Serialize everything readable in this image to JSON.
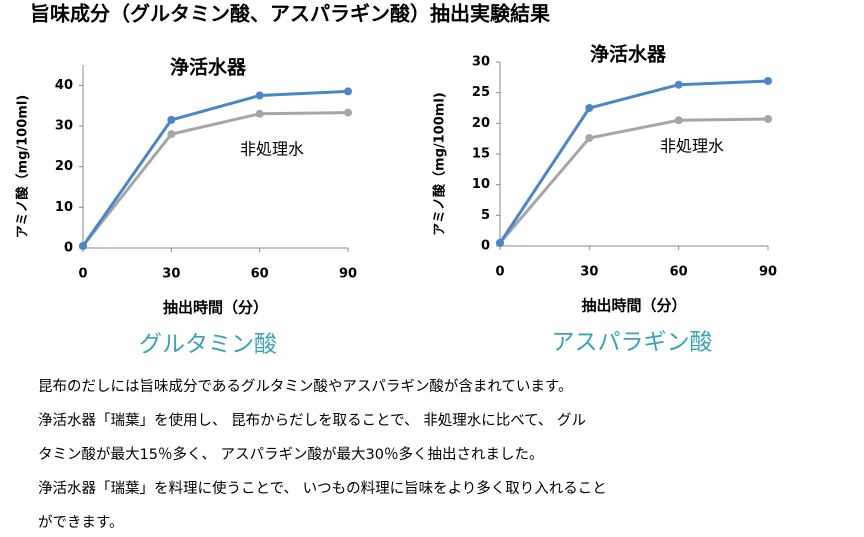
{
  "title": "旨味成分（グルタミン酸、アスパラギン酸）抽出実験結果",
  "chart_data": [
    {
      "type": "line",
      "subtitle": "グルタミン酸",
      "x_label": "抽出時間（分）",
      "y_label": "アミノ酸（mg/100ml)",
      "x": [
        0,
        30,
        60,
        90
      ],
      "xlim": [
        0,
        90
      ],
      "xticks": [
        0,
        30,
        60,
        90
      ],
      "ylim": [
        0,
        45
      ],
      "yticks": [
        0,
        10,
        20,
        30,
        40
      ],
      "series": [
        {
          "name": "浄活水器",
          "color": "#4a86c8",
          "values": [
            0.5,
            31.5,
            37.5,
            38.5
          ]
        },
        {
          "name": "非処理水",
          "color": "#a6a6a6",
          "values": [
            0.5,
            28,
            33,
            33.3
          ]
        }
      ]
    },
    {
      "type": "line",
      "subtitle": "アスパラギン酸",
      "x_label": "抽出時間（分）",
      "y_label": "アミノ酸（mg/100ml)",
      "x": [
        0,
        30,
        60,
        90
      ],
      "xlim": [
        0,
        90
      ],
      "xticks": [
        0,
        30,
        60,
        90
      ],
      "ylim": [
        0,
        30
      ],
      "yticks": [
        0,
        5,
        10,
        15,
        20,
        25,
        30
      ],
      "series": [
        {
          "name": "浄活水器",
          "color": "#4a86c8",
          "values": [
            0.5,
            22.5,
            26.3,
            26.9
          ]
        },
        {
          "name": "非処理水",
          "color": "#a6a6a6",
          "values": [
            0.5,
            17.6,
            20.5,
            20.7
          ]
        }
      ]
    }
  ],
  "paragraph": [
    "昆布のだしには旨味成分であるグルタミン酸やアスパラギン酸が含まれています。",
    "浄活水器「瑞葉」を使用し、 昆布からだしを取ることで、 非処理水に比べて、 グル",
    "タミン酸が最大15％多く、 アスパラギン酸が最大30％多く抽出されました。",
    "浄活水器「瑞葉」を料理に使うことで、 いつもの料理に旨味をより多く取り入れること",
    "ができます。"
  ]
}
